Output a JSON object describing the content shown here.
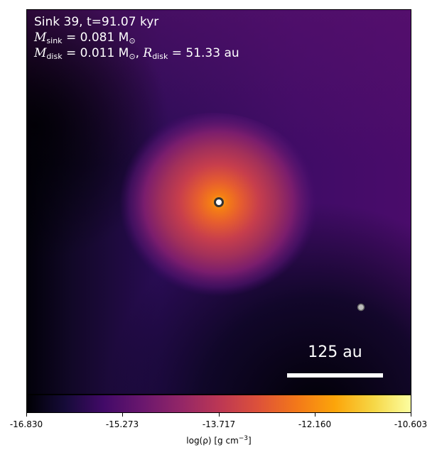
{
  "annotation": {
    "line1": "Sink 39, t=91.07 kyr",
    "sink_mass_label": "M",
    "sink_mass_sub": "sink",
    "sink_mass_value": " = 0.081 M",
    "sink_mass_unit_sub": "⊙",
    "disk_mass_label": "M",
    "disk_mass_sub": "disk",
    "disk_mass_value": " = 0.011 M",
    "disk_mass_unit_sub": "⊙",
    "disk_radius_sep": ", ",
    "disk_radius_label": "R",
    "disk_radius_sub": "disk",
    "disk_radius_value": " = 51.33 au"
  },
  "scale_bar": {
    "label": "125 au"
  },
  "colorbar": {
    "ticks": [
      "-16.830",
      "-15.273",
      "-13.717",
      "-12.160",
      "-10.603"
    ],
    "label_prefix": "log(ρ) [g cm",
    "label_exp": "−3",
    "label_suffix": "]",
    "colormap": "inferno"
  },
  "sinks": [
    {
      "name": "primary",
      "color": "#ffffff"
    },
    {
      "name": "secondary",
      "color": "#bdbdbd"
    }
  ]
}
